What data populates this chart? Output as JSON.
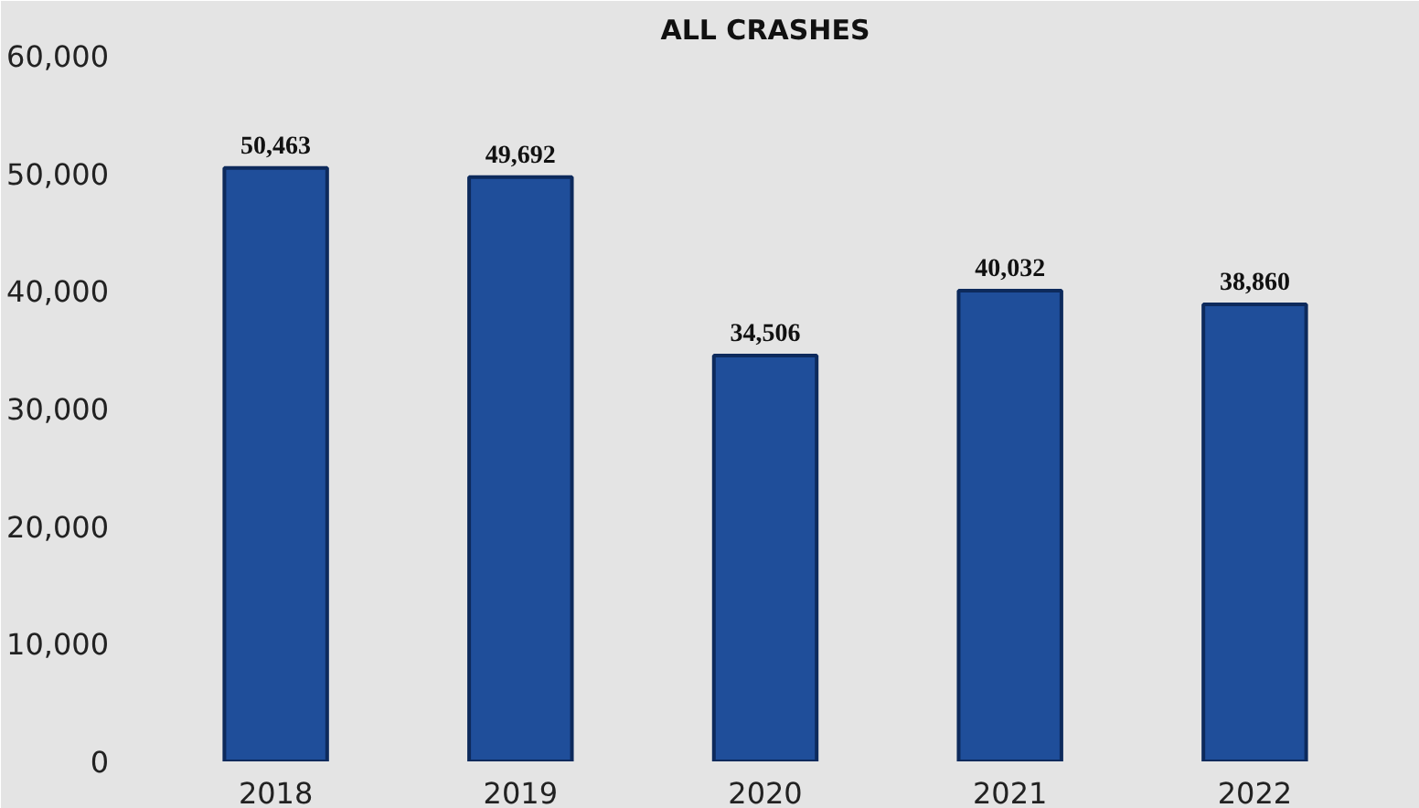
{
  "chart_data": {
    "type": "bar",
    "title": "ALL CRASHES",
    "categories": [
      "2018",
      "2019",
      "2020",
      "2021",
      "2022"
    ],
    "values": [
      50463,
      49692,
      34506,
      40032,
      38860
    ],
    "color": "#1f4e9a",
    "ylim": [
      0,
      60000
    ],
    "yticks": [
      {
        "value": 0,
        "label": "0"
      },
      {
        "value": 10000,
        "label": "10,000"
      },
      {
        "value": 20000,
        "label": "20,000"
      },
      {
        "value": 30000,
        "label": "30,000"
      },
      {
        "value": 40000,
        "label": "40,000"
      },
      {
        "value": 50000,
        "label": "50,000"
      },
      {
        "value": 60000,
        "label": "60,000"
      }
    ],
    "value_labels": [
      "50,463",
      "49,692",
      "34,506",
      "40,032",
      "38,860"
    ]
  }
}
